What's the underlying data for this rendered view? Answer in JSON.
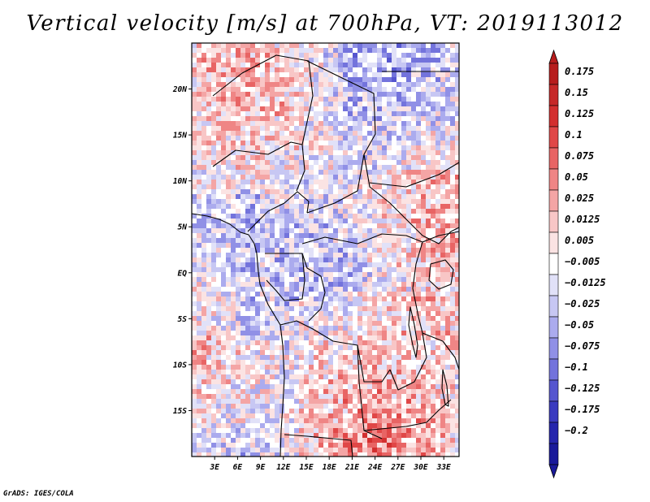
{
  "title": "Vertical velocity [m/s] at 700hPa, VT: 2019113012",
  "credit": "GrADS: IGES/COLA",
  "lat_labels": [
    "20N",
    "15N",
    "10N",
    "5N",
    "EQ",
    "5S",
    "10S",
    "15S"
  ],
  "lat_values": [
    20,
    15,
    10,
    5,
    0,
    -5,
    -10,
    -15
  ],
  "lon_labels": [
    "3E",
    "6E",
    "9E",
    "12E",
    "15E",
    "18E",
    "21E",
    "24E",
    "27E",
    "30E",
    "33E"
  ],
  "lon_values": [
    3,
    6,
    9,
    12,
    15,
    18,
    21,
    24,
    27,
    30,
    33
  ],
  "extent": {
    "lon_min": 0,
    "lon_max": 35,
    "lat_min": -20,
    "lat_max": 25
  },
  "colorbar": {
    "labels": [
      "0.175",
      "0.15",
      "0.125",
      "0.1",
      "0.075",
      "0.05",
      "0.025",
      "0.0125",
      "0.005",
      "−0.005",
      "−0.0125",
      "−0.025",
      "−0.05",
      "−0.075",
      "−0.1",
      "−0.125",
      "−0.175",
      "−0.2"
    ],
    "colors": [
      "#b71c1c",
      "#c62828",
      "#d32f2f",
      "#e04747",
      "#e86464",
      "#ef8585",
      "#f4a5a5",
      "#f8c6c6",
      "#fbe3e3",
      "#ffffff",
      "#e1e1f8",
      "#c7c7f3",
      "#ababee",
      "#9090e6",
      "#7373dc",
      "#5656cf",
      "#3a3ac0",
      "#2525ad",
      "#1a1a9a"
    ]
  }
}
